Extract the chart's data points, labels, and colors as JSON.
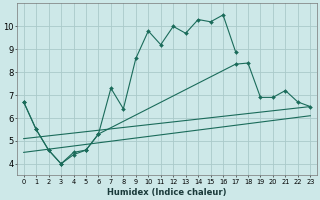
{
  "xlabel": "Humidex (Indice chaleur)",
  "background_color": "#cde8e8",
  "grid_color": "#aacaca",
  "line_color": "#1a6b5a",
  "xlim": [
    -0.5,
    23.5
  ],
  "ylim": [
    3.5,
    11.0
  ],
  "xtick_labels": [
    "0",
    "1",
    "2",
    "3",
    "4",
    "5",
    "6",
    "7",
    "8",
    "9",
    "10",
    "11",
    "12",
    "13",
    "14",
    "15",
    "16",
    "17",
    "18",
    "19",
    "20",
    "21",
    "22",
    "23"
  ],
  "ytick_labels": [
    "4",
    "5",
    "6",
    "7",
    "8",
    "9",
    "10"
  ],
  "lines": [
    {
      "x": [
        0,
        1,
        2,
        3,
        4,
        5,
        6,
        7,
        8,
        9,
        10,
        11,
        12,
        13,
        14,
        15,
        16,
        17
      ],
      "y": [
        6.7,
        5.5,
        4.6,
        4.0,
        4.5,
        4.6,
        5.3,
        7.3,
        6.4,
        8.6,
        9.8,
        9.2,
        10.0,
        9.7,
        10.3,
        10.2,
        10.5,
        8.9
      ],
      "has_markers": true
    },
    {
      "x": [
        0,
        1,
        2,
        3,
        4,
        5,
        6,
        17,
        18,
        19,
        20,
        21,
        22,
        23
      ],
      "y": [
        6.7,
        5.5,
        4.6,
        4.0,
        4.4,
        4.6,
        5.3,
        8.35,
        8.4,
        6.9,
        6.9,
        7.2,
        6.7,
        6.5
      ],
      "has_markers": true
    },
    {
      "x": [
        0,
        23
      ],
      "y": [
        5.1,
        6.5
      ],
      "has_markers": false
    },
    {
      "x": [
        0,
        23
      ],
      "y": [
        4.5,
        6.1
      ],
      "has_markers": false
    }
  ]
}
